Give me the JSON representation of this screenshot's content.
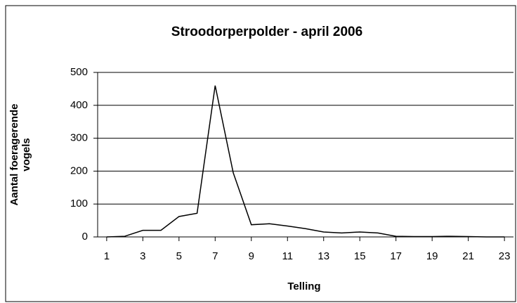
{
  "chart_data": {
    "type": "line",
    "title": "Stroodorperpolder - april 2006",
    "xlabel": "Telling",
    "ylabel": "Aantal foeragerende vogels",
    "x": [
      1,
      2,
      3,
      4,
      5,
      6,
      7,
      8,
      9,
      10,
      11,
      12,
      13,
      14,
      15,
      16,
      17,
      18,
      19,
      20,
      21,
      22,
      23
    ],
    "series": [
      {
        "name": "vogels",
        "color": "#000000",
        "values": [
          0,
          2,
          20,
          20,
          62,
          72,
          460,
          195,
          37,
          40,
          33,
          25,
          15,
          12,
          15,
          12,
          2,
          1,
          1,
          2,
          1,
          0,
          0
        ]
      }
    ],
    "xlim": [
      0.5,
      23.5
    ],
    "xticks": [
      1,
      3,
      5,
      7,
      9,
      11,
      13,
      15,
      17,
      19,
      21,
      23
    ],
    "ylim": [
      0,
      500
    ],
    "yticks": [
      0,
      100,
      200,
      300,
      400,
      500
    ],
    "grid": true
  }
}
